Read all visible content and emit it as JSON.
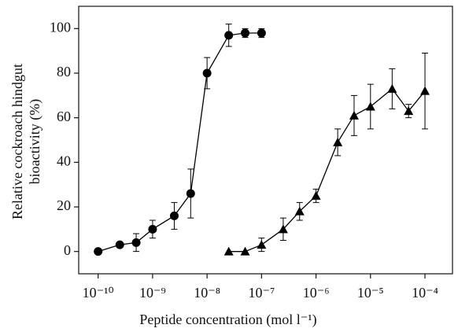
{
  "chart_data": {
    "type": "line",
    "xlabel": "Peptide concentration (mol l⁻¹)",
    "ylabel": [
      "Relative cockroach hindgut",
      "bioactivity (%)"
    ],
    "xscale": "log",
    "xlim": [
      4.4e-11,
      0.00032
    ],
    "ylim": [
      -10,
      110
    ],
    "xticks": [
      {
        "value": 1e-10,
        "label": "10⁻¹⁰"
      },
      {
        "value": 1e-09,
        "label": "10⁻⁹"
      },
      {
        "value": 1e-08,
        "label": "10⁻⁸"
      },
      {
        "value": 1e-07,
        "label": "10⁻⁷"
      },
      {
        "value": 1e-06,
        "label": "10⁻⁶"
      },
      {
        "value": 1e-05,
        "label": "10⁻⁵"
      },
      {
        "value": 0.0001,
        "label": "10⁻⁴"
      }
    ],
    "yticks": [
      0,
      20,
      40,
      60,
      80,
      100
    ],
    "series": [
      {
        "color": "#000000",
        "marker": "circle",
        "x": [
          1e-10,
          2.5e-10,
          5e-10,
          1e-09,
          2.5e-09,
          5e-09,
          1e-08,
          2.5e-08,
          5e-08,
          1e-07
        ],
        "values": [
          0,
          3,
          4,
          10,
          16,
          26,
          80,
          97,
          98,
          98
        ],
        "errors": [
          0,
          1,
          4,
          4,
          6,
          11,
          7,
          5,
          2,
          2
        ]
      },
      {
        "color": "#000000",
        "marker": "triangle",
        "x": [
          2.5e-08,
          5e-08,
          1e-07,
          2.5e-07,
          5e-07,
          1e-06,
          2.5e-06,
          5e-06,
          1e-05,
          2.5e-05,
          5e-05,
          0.0001
        ],
        "values": [
          0,
          0,
          3,
          10,
          18,
          25,
          49,
          61,
          65,
          73,
          63,
          72
        ],
        "errors": [
          0,
          0,
          3,
          5,
          4,
          3,
          6,
          9,
          10,
          9,
          3,
          17
        ]
      }
    ]
  }
}
